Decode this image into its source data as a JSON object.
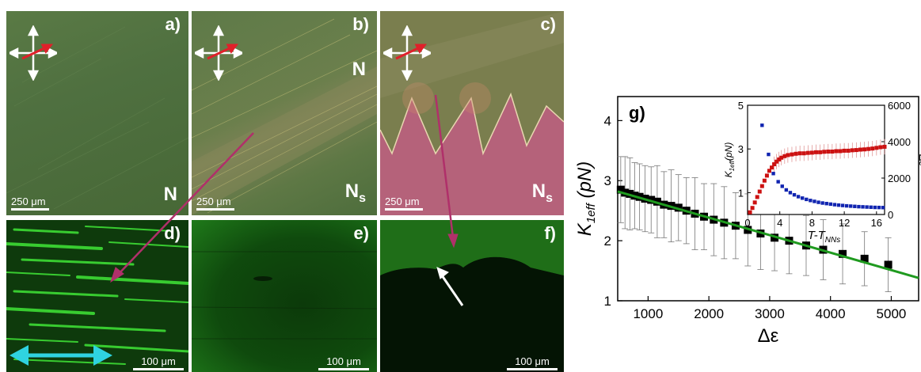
{
  "panels": {
    "a": {
      "label": "a)",
      "phase": "N",
      "scalebar": "250 μm"
    },
    "b": {
      "label": "b)",
      "phase_top": "N",
      "phase": "N",
      "phase_sub": "s",
      "scalebar": "250 μm"
    },
    "c": {
      "label": "c)",
      "phase": "N",
      "phase_sub": "s",
      "scalebar": "250 μm"
    },
    "d": {
      "label": "d)",
      "scalebar": "100 μm"
    },
    "e": {
      "label": "e)",
      "scalebar": "100 μm"
    },
    "f": {
      "label": "f)",
      "scalebar": "100 μm"
    },
    "g": {
      "label": "g)"
    }
  },
  "colors": {
    "pom_green": "#4c6e3a",
    "fluor_green": "#2fd62a",
    "fit_line": "#1f9a1f",
    "magenta_arrow": "#b0306a",
    "cyan_arrow": "#2fd3e0",
    "inset_red": "#cc1111",
    "inset_blue": "#1024b0"
  },
  "chart_data": {
    "type": "scatter",
    "xlabel": "Δε",
    "ylabel_main": "K",
    "ylabel_sub": "1eff",
    "ylabel_unit": "(pN)",
    "xlim": [
      500,
      5450
    ],
    "ylim": [
      1,
      4.4
    ],
    "xticks": [
      "1000",
      "2000",
      "3000",
      "4000",
      "5000"
    ],
    "yticks": [
      "1",
      "2",
      "3",
      "4"
    ],
    "points": [
      {
        "x": 550,
        "y": 2.85,
        "err": 0.55
      },
      {
        "x": 620,
        "y": 2.8,
        "err": 0.6
      },
      {
        "x": 700,
        "y": 2.78,
        "err": 0.6
      },
      {
        "x": 780,
        "y": 2.75,
        "err": 0.55
      },
      {
        "x": 860,
        "y": 2.73,
        "err": 0.55
      },
      {
        "x": 950,
        "y": 2.7,
        "err": 0.55
      },
      {
        "x": 1050,
        "y": 2.68,
        "err": 0.55
      },
      {
        "x": 1150,
        "y": 2.65,
        "err": 0.6
      },
      {
        "x": 1260,
        "y": 2.6,
        "err": 0.55
      },
      {
        "x": 1380,
        "y": 2.58,
        "err": 0.6
      },
      {
        "x": 1500,
        "y": 2.55,
        "err": 0.55
      },
      {
        "x": 1630,
        "y": 2.5,
        "err": 0.55
      },
      {
        "x": 1770,
        "y": 2.45,
        "err": 0.6
      },
      {
        "x": 1920,
        "y": 2.4,
        "err": 0.55
      },
      {
        "x": 2080,
        "y": 2.35,
        "err": 0.6
      },
      {
        "x": 2250,
        "y": 2.3,
        "err": 0.6
      },
      {
        "x": 2440,
        "y": 2.25,
        "err": 0.55
      },
      {
        "x": 2640,
        "y": 2.18,
        "err": 0.6
      },
      {
        "x": 2850,
        "y": 2.12,
        "err": 0.6
      },
      {
        "x": 3080,
        "y": 2.05,
        "err": 0.55
      },
      {
        "x": 3320,
        "y": 2.0,
        "err": 0.55
      },
      {
        "x": 3600,
        "y": 1.92,
        "err": 0.5
      },
      {
        "x": 3880,
        "y": 1.85,
        "err": 0.5
      },
      {
        "x": 4200,
        "y": 1.78,
        "err": 0.5
      },
      {
        "x": 4560,
        "y": 1.7,
        "err": 0.45
      },
      {
        "x": 4950,
        "y": 1.6,
        "err": 0.45
      }
    ],
    "fit_line": {
      "x": [
        500,
        5450
      ],
      "y": [
        2.82,
        1.38
      ]
    },
    "inset": {
      "xlabel_main": "T-T",
      "xlabel_sub": "NNs",
      "ylabel_left_main": "K",
      "ylabel_left_sub": "1eff",
      "ylabel_left_unit": "(pN)",
      "ylabel_right": "Δε",
      "xlim": [
        0,
        17
      ],
      "ylim_left": [
        0,
        5
      ],
      "ylim_right": [
        0,
        6000
      ],
      "xticks": [
        "0",
        "4",
        "8",
        "12",
        "16"
      ],
      "yticks_left": [
        "1",
        "3",
        "5"
      ],
      "yticks_right": [
        "0",
        "2000",
        "4000",
        "6000"
      ],
      "red_series": [
        [
          0.3,
          0.1
        ],
        [
          0.6,
          0.3
        ],
        [
          0.9,
          0.55
        ],
        [
          1.2,
          0.8
        ],
        [
          1.5,
          1.05
        ],
        [
          1.8,
          1.3
        ],
        [
          2.1,
          1.55
        ],
        [
          2.4,
          1.78
        ],
        [
          2.7,
          2.0
        ],
        [
          3.0,
          2.15
        ],
        [
          3.3,
          2.3
        ],
        [
          3.6,
          2.42
        ],
        [
          3.9,
          2.52
        ],
        [
          4.2,
          2.6
        ],
        [
          4.6,
          2.67
        ],
        [
          5.0,
          2.72
        ],
        [
          5.5,
          2.75
        ],
        [
          6.0,
          2.78
        ],
        [
          6.5,
          2.8
        ],
        [
          7.0,
          2.8
        ],
        [
          7.5,
          2.82
        ],
        [
          8.0,
          2.83
        ],
        [
          8.5,
          2.85
        ],
        [
          9.0,
          2.85
        ],
        [
          9.5,
          2.87
        ],
        [
          10.0,
          2.88
        ],
        [
          10.5,
          2.88
        ],
        [
          11.0,
          2.9
        ],
        [
          11.5,
          2.9
        ],
        [
          12.0,
          2.92
        ],
        [
          12.5,
          2.92
        ],
        [
          13.0,
          2.94
        ],
        [
          13.5,
          2.95
        ],
        [
          14.0,
          2.97
        ],
        [
          14.5,
          2.98
        ],
        [
          15.0,
          3.0
        ],
        [
          15.5,
          3.02
        ],
        [
          16.0,
          3.05
        ],
        [
          16.5,
          3.08
        ],
        [
          17.0,
          3.1
        ]
      ],
      "blue_series": [
        [
          1.8,
          4900
        ],
        [
          2.6,
          3300
        ],
        [
          3.2,
          2250
        ],
        [
          3.8,
          1800
        ],
        [
          4.3,
          1550
        ],
        [
          4.8,
          1350
        ],
        [
          5.3,
          1200
        ],
        [
          5.8,
          1080
        ],
        [
          6.3,
          980
        ],
        [
          6.8,
          900
        ],
        [
          7.3,
          830
        ],
        [
          7.8,
          770
        ],
        [
          8.3,
          720
        ],
        [
          8.8,
          670
        ],
        [
          9.3,
          630
        ],
        [
          9.8,
          600
        ],
        [
          10.3,
          570
        ],
        [
          10.8,
          540
        ],
        [
          11.3,
          515
        ],
        [
          11.8,
          495
        ],
        [
          12.3,
          475
        ],
        [
          12.8,
          460
        ],
        [
          13.3,
          445
        ],
        [
          13.8,
          430
        ],
        [
          14.3,
          420
        ],
        [
          14.8,
          410
        ],
        [
          15.3,
          400
        ],
        [
          15.8,
          390
        ],
        [
          16.3,
          385
        ],
        [
          16.8,
          380
        ]
      ]
    }
  }
}
